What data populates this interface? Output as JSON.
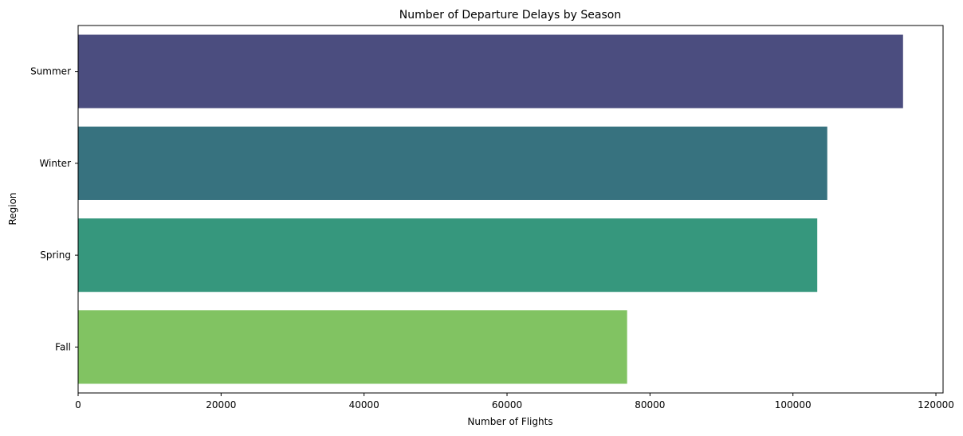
{
  "chart_data": {
    "type": "bar",
    "orientation": "horizontal",
    "title": "Number of Departure Delays by Season",
    "xlabel": "Number of Flights",
    "ylabel": "Region",
    "categories": [
      "Summer",
      "Winter",
      "Spring",
      "Fall"
    ],
    "values": [
      115400,
      104800,
      103400,
      76800
    ],
    "colors": [
      "#4b4d7f",
      "#37727f",
      "#36977d",
      "#81c362"
    ],
    "xlim": [
      0,
      121000
    ],
    "xticks": [
      0,
      20000,
      40000,
      60000,
      80000,
      100000,
      120000
    ],
    "xtick_labels": [
      "0",
      "20000",
      "40000",
      "60000",
      "80000",
      "100000",
      "120000"
    ],
    "grid": false,
    "legend": false
  }
}
